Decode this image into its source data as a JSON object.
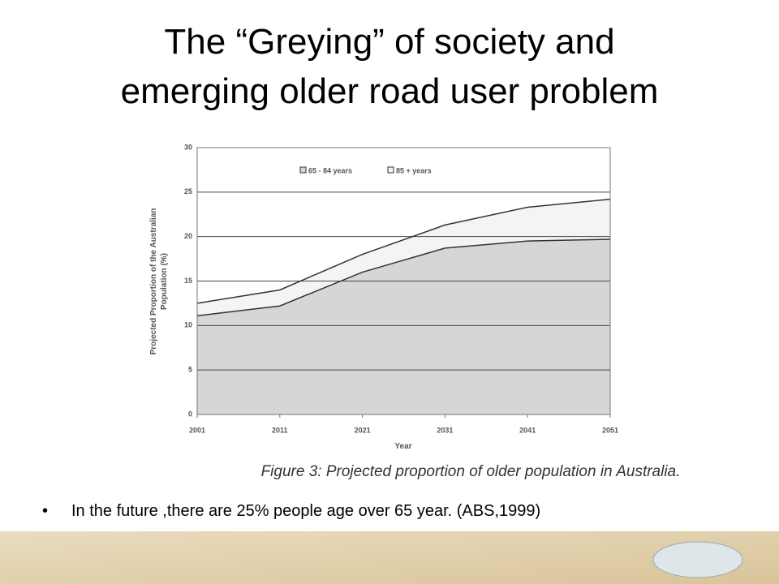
{
  "title": [
    "The “Greying” of society and",
    "emerging older road user problem"
  ],
  "bullet": "In the future ,there are 25% people age over 65 year. (ABS,1999)",
  "chart_data": {
    "type": "area",
    "stacked": true,
    "x": [
      2001,
      2011,
      2021,
      2031,
      2041,
      2051
    ],
    "xlim": [
      2001,
      2051
    ],
    "xticks": [
      2001,
      2011,
      2021,
      2031,
      2041,
      2051
    ],
    "ylim": [
      0,
      30
    ],
    "yticks": [
      0,
      5,
      10,
      15,
      20,
      25,
      30
    ],
    "grid": true,
    "xlabel": "Year",
    "ylabel": [
      "Projected Proportion of the Australian",
      "Population (%)"
    ],
    "caption": "Figure 3: Projected proportion of older population in Australia.",
    "series": [
      {
        "name": "65 - 84 years",
        "color": "#d6d6d6",
        "values": [
          11.1,
          12.2,
          16,
          18.7,
          19.5,
          19.7
        ]
      },
      {
        "name": "85 + years",
        "color": "#f4f4f4",
        "values": [
          1.4,
          1.8,
          2.0,
          2.6,
          3.8,
          4.5
        ]
      }
    ]
  }
}
